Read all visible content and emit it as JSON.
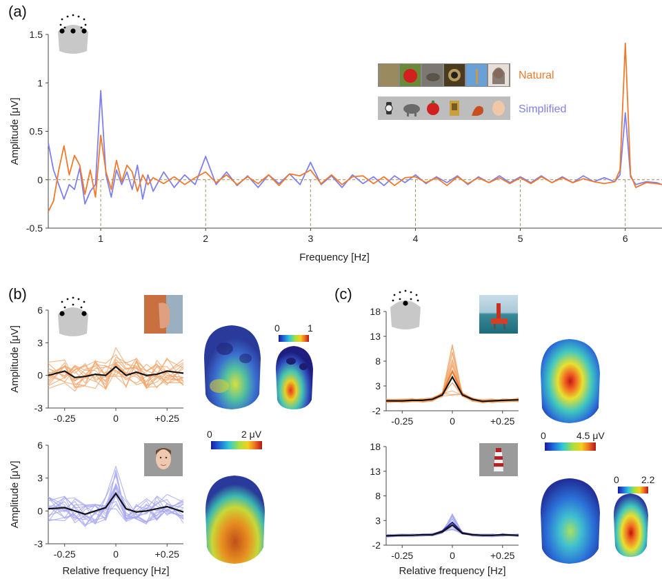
{
  "colors": {
    "natural": "#F07A2A",
    "natural_light": "#F5A66B",
    "simplified": "#7F7FF0",
    "simplified_light": "#A7A7F5",
    "mean": "#111111",
    "dark_blue": "#26268C",
    "guide": "#9C8F5A"
  },
  "panels": {
    "a": "(a)",
    "b": "(b)",
    "c": "(c)"
  },
  "legend": {
    "natural": "Natural",
    "simplified": "Simplified"
  },
  "colorbars": {
    "b_small": {
      "min": "0",
      "max": "1"
    },
    "b_main": {
      "min": "0",
      "max": "2 μV"
    },
    "c_main": {
      "min": "0",
      "max": "4.5 μV"
    },
    "c_small": {
      "min": "0",
      "max": "2.2"
    }
  },
  "icons": {
    "electrode_map": "electrode-montage-icon",
    "woman_profile": "woman-profile-photo-icon",
    "face": "simplified-face-icon",
    "oil_rig": "offshore-platform-photo-icon",
    "lighthouse": "lighthouse-icon",
    "head_map": "scalp-topography-icon"
  },
  "chart_data": [
    {
      "id": "a",
      "type": "line",
      "xlabel": "Frequency [Hz]",
      "ylabel": "Amplitude [μV]",
      "xlim": [
        0.5,
        6.35
      ],
      "ylim": [
        -0.5,
        1.5
      ],
      "xticks": [
        "1",
        "2",
        "3",
        "4",
        "5",
        "6"
      ],
      "yticks": [
        "-0.5",
        "0",
        "0.5",
        "1",
        "1.5"
      ],
      "guides_x": [
        1,
        2,
        3,
        4,
        5,
        6
      ],
      "series": [
        {
          "name": "Natural",
          "points": [
            [
              0.5,
              -0.33
            ],
            [
              0.55,
              -0.22
            ],
            [
              0.6,
              0.1
            ],
            [
              0.65,
              0.35
            ],
            [
              0.7,
              0.05
            ],
            [
              0.75,
              0.25
            ],
            [
              0.8,
              0.15
            ],
            [
              0.85,
              -0.15
            ],
            [
              0.9,
              0.1
            ],
            [
              0.95,
              -0.18
            ],
            [
              1.0,
              0.46
            ],
            [
              1.05,
              0.08
            ],
            [
              1.1,
              -0.1
            ],
            [
              1.15,
              0.2
            ],
            [
              1.2,
              -0.02
            ],
            [
              1.25,
              0.15
            ],
            [
              1.3,
              0.08
            ],
            [
              1.35,
              -0.12
            ],
            [
              1.4,
              0.05
            ],
            [
              1.45,
              -0.05
            ],
            [
              1.5,
              0.02
            ],
            [
              1.6,
              -0.04
            ],
            [
              1.7,
              0.03
            ],
            [
              1.8,
              -0.05
            ],
            [
              1.9,
              0.02
            ],
            [
              2.0,
              0.08
            ],
            [
              2.1,
              -0.03
            ],
            [
              2.2,
              0.05
            ],
            [
              2.3,
              -0.05
            ],
            [
              2.4,
              0.03
            ],
            [
              2.5,
              -0.04
            ],
            [
              2.6,
              0.05
            ],
            [
              2.7,
              -0.06
            ],
            [
              2.8,
              0.06
            ],
            [
              2.9,
              0.04
            ],
            [
              3.0,
              0.1
            ],
            [
              3.1,
              -0.04
            ],
            [
              3.2,
              0.05
            ],
            [
              3.3,
              -0.05
            ],
            [
              3.4,
              0.03
            ],
            [
              3.5,
              0.04
            ],
            [
              3.6,
              -0.04
            ],
            [
              3.7,
              0.03
            ],
            [
              3.8,
              -0.06
            ],
            [
              3.9,
              0.02
            ],
            [
              4.0,
              0.03
            ],
            [
              4.1,
              -0.03
            ],
            [
              4.2,
              0.02
            ],
            [
              4.3,
              -0.06
            ],
            [
              4.4,
              0.03
            ],
            [
              4.5,
              -0.04
            ],
            [
              4.6,
              0.02
            ],
            [
              4.7,
              -0.03
            ],
            [
              4.8,
              0.02
            ],
            [
              4.9,
              -0.04
            ],
            [
              5.0,
              0.02
            ],
            [
              5.1,
              -0.04
            ],
            [
              5.2,
              0.03
            ],
            [
              5.3,
              -0.03
            ],
            [
              5.4,
              0.02
            ],
            [
              5.5,
              -0.03
            ],
            [
              5.6,
              0.01
            ],
            [
              5.7,
              -0.02
            ],
            [
              5.8,
              -0.04
            ],
            [
              5.9,
              -0.02
            ],
            [
              5.95,
              0.1
            ],
            [
              6.0,
              1.41
            ],
            [
              6.05,
              0.05
            ],
            [
              6.1,
              -0.08
            ],
            [
              6.2,
              -0.03
            ],
            [
              6.3,
              -0.04
            ],
            [
              6.35,
              -0.05
            ]
          ]
        },
        {
          "name": "Simplified",
          "points": [
            [
              0.5,
              0.38
            ],
            [
              0.55,
              0.1
            ],
            [
              0.6,
              -0.05
            ],
            [
              0.65,
              -0.2
            ],
            [
              0.7,
              -0.05
            ],
            [
              0.75,
              -0.1
            ],
            [
              0.8,
              0.12
            ],
            [
              0.85,
              -0.25
            ],
            [
              0.9,
              -0.12
            ],
            [
              0.95,
              -0.05
            ],
            [
              1.0,
              0.92
            ],
            [
              1.05,
              0.05
            ],
            [
              1.1,
              -0.18
            ],
            [
              1.15,
              0.1
            ],
            [
              1.2,
              -0.05
            ],
            [
              1.25,
              0.08
            ],
            [
              1.3,
              -0.1
            ],
            [
              1.35,
              0.15
            ],
            [
              1.4,
              -0.2
            ],
            [
              1.45,
              0.05
            ],
            [
              1.5,
              -0.12
            ],
            [
              1.6,
              0.08
            ],
            [
              1.7,
              -0.08
            ],
            [
              1.8,
              0.05
            ],
            [
              1.9,
              -0.05
            ],
            [
              2.0,
              0.24
            ],
            [
              2.1,
              -0.05
            ],
            [
              2.2,
              0.08
            ],
            [
              2.3,
              -0.06
            ],
            [
              2.4,
              0.04
            ],
            [
              2.5,
              -0.08
            ],
            [
              2.6,
              0.05
            ],
            [
              2.7,
              -0.04
            ],
            [
              2.8,
              0.06
            ],
            [
              2.9,
              -0.05
            ],
            [
              3.0,
              0.18
            ],
            [
              3.1,
              -0.05
            ],
            [
              3.2,
              0.04
            ],
            [
              3.3,
              -0.08
            ],
            [
              3.4,
              0.05
            ],
            [
              3.5,
              -0.04
            ],
            [
              3.6,
              0.03
            ],
            [
              3.7,
              -0.06
            ],
            [
              3.8,
              0.04
            ],
            [
              3.9,
              -0.03
            ],
            [
              4.0,
              0.05
            ],
            [
              4.1,
              -0.04
            ],
            [
              4.2,
              0.03
            ],
            [
              4.3,
              -0.03
            ],
            [
              4.4,
              0.04
            ],
            [
              4.5,
              -0.05
            ],
            [
              4.6,
              0.03
            ],
            [
              4.7,
              -0.03
            ],
            [
              4.8,
              0.04
            ],
            [
              4.9,
              -0.03
            ],
            [
              5.0,
              0.03
            ],
            [
              5.1,
              -0.03
            ],
            [
              5.2,
              0.04
            ],
            [
              5.3,
              -0.03
            ],
            [
              5.4,
              0.03
            ],
            [
              5.5,
              -0.03
            ],
            [
              5.6,
              0.04
            ],
            [
              5.7,
              -0.02
            ],
            [
              5.8,
              0.02
            ],
            [
              5.9,
              -0.02
            ],
            [
              5.95,
              0.05
            ],
            [
              6.0,
              0.69
            ],
            [
              6.05,
              0.03
            ],
            [
              6.1,
              -0.05
            ],
            [
              6.2,
              -0.02
            ],
            [
              6.3,
              -0.03
            ],
            [
              6.35,
              -0.05
            ]
          ]
        }
      ]
    },
    {
      "id": "b-top",
      "type": "line",
      "condition": "Natural",
      "ylabel": "Amplitude [μV]",
      "xlim": [
        -0.33,
        0.33
      ],
      "ylim": [
        -3,
        6
      ],
      "xticks": [
        "-0.25",
        "0",
        "+0.25"
      ],
      "yticks": [
        "6",
        "3",
        "0",
        "-3"
      ],
      "mean": [
        [
          -0.33,
          0.0
        ],
        [
          -0.25,
          0.4
        ],
        [
          -0.2,
          -0.2
        ],
        [
          -0.15,
          -0.1
        ],
        [
          -0.1,
          0.1
        ],
        [
          -0.05,
          0.0
        ],
        [
          0.0,
          0.8
        ],
        [
          0.05,
          0.0
        ],
        [
          0.1,
          0.3
        ],
        [
          0.15,
          0.0
        ],
        [
          0.2,
          0.1
        ],
        [
          0.25,
          0.4
        ],
        [
          0.33,
          0.2
        ]
      ],
      "individual_count": 16,
      "individual_spread": 1.3,
      "peak_extra": 2.8
    },
    {
      "id": "b-bottom",
      "type": "line",
      "condition": "Simplified",
      "ylabel": "Amplitude [μV]",
      "xlabel": "Relative frequency [Hz]",
      "xlim": [
        -0.33,
        0.33
      ],
      "ylim": [
        -3,
        6
      ],
      "xticks": [
        "-0.25",
        "0",
        "+0.25"
      ],
      "yticks": [
        "6",
        "3",
        "0",
        "-3"
      ],
      "mean": [
        [
          -0.33,
          0.2
        ],
        [
          -0.25,
          0.3
        ],
        [
          -0.2,
          0.0
        ],
        [
          -0.15,
          -0.3
        ],
        [
          -0.1,
          0.0
        ],
        [
          -0.05,
          0.3
        ],
        [
          0.0,
          1.6
        ],
        [
          0.05,
          0.2
        ],
        [
          0.1,
          -0.1
        ],
        [
          0.15,
          0.0
        ],
        [
          0.2,
          0.2
        ],
        [
          0.25,
          0.4
        ],
        [
          0.33,
          -0.1
        ]
      ],
      "individual_count": 16,
      "individual_spread": 1.2,
      "peak_extra": 4.0
    },
    {
      "id": "c-top",
      "type": "line",
      "condition": "Natural",
      "xlim": [
        -0.33,
        0.33
      ],
      "ylim": [
        -2,
        18
      ],
      "xticks": [
        "-0.25",
        "0",
        "+0.25"
      ],
      "yticks": [
        "18",
        "13",
        "8",
        "3",
        "-2"
      ],
      "mean": [
        [
          -0.33,
          0.0
        ],
        [
          -0.25,
          0.0
        ],
        [
          -0.2,
          0.1
        ],
        [
          -0.15,
          0.1
        ],
        [
          -0.1,
          0.3
        ],
        [
          -0.05,
          1.2
        ],
        [
          0.0,
          4.8
        ],
        [
          0.05,
          1.2
        ],
        [
          0.1,
          0.3
        ],
        [
          0.15,
          -0.1
        ],
        [
          0.2,
          0.0
        ],
        [
          0.25,
          0.1
        ],
        [
          0.33,
          0.2
        ]
      ],
      "individual_count": 16,
      "individual_spread": 0.4,
      "peak_extra": 11.0
    },
    {
      "id": "c-bottom",
      "type": "line",
      "condition": "Simplified",
      "xlabel": "Relative frequency [Hz]",
      "xlim": [
        -0.33,
        0.33
      ],
      "ylim": [
        -2,
        18
      ],
      "xticks": [
        "-0.25",
        "0",
        "+0.25"
      ],
      "yticks": [
        "18",
        "13",
        "8",
        "3",
        "-2"
      ],
      "mean": [
        [
          -0.33,
          -0.1
        ],
        [
          -0.25,
          0.0
        ],
        [
          -0.2,
          0.0
        ],
        [
          -0.15,
          0.1
        ],
        [
          -0.1,
          0.1
        ],
        [
          -0.05,
          0.7
        ],
        [
          0.0,
          2.1
        ],
        [
          0.05,
          0.4
        ],
        [
          0.1,
          0.1
        ],
        [
          0.15,
          0.0
        ],
        [
          0.2,
          0.0
        ],
        [
          0.25,
          0.1
        ],
        [
          0.33,
          0.0
        ]
      ],
      "individual_count": 16,
      "individual_spread": 0.3,
      "peak_extra": 3.5
    }
  ]
}
